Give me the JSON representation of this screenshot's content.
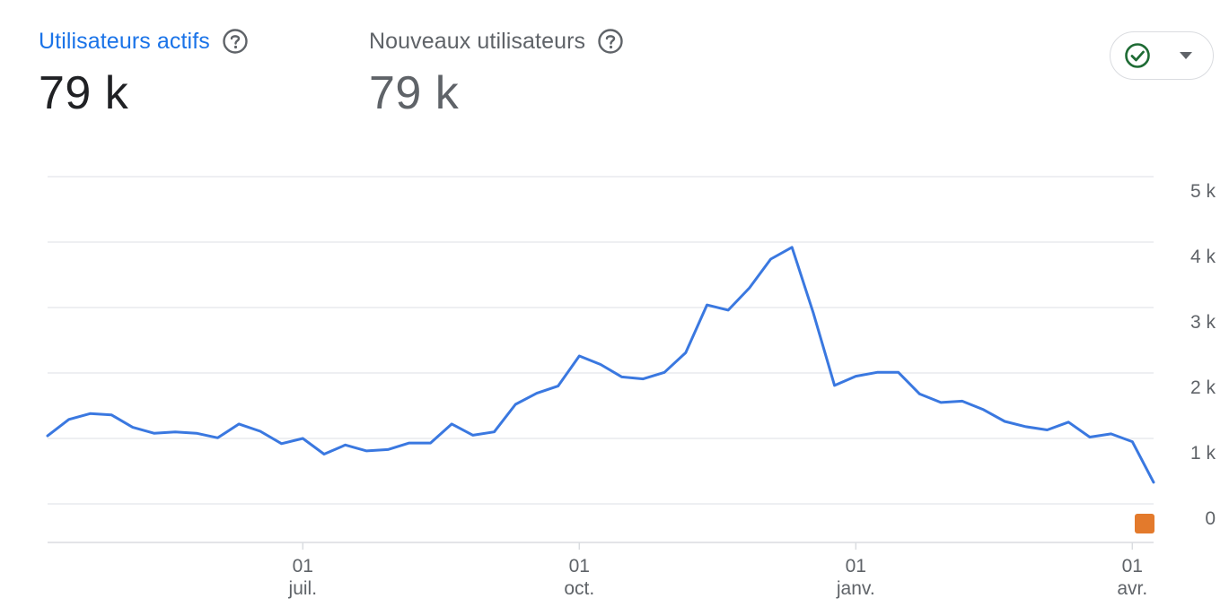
{
  "metrics": {
    "active_users": {
      "label": "Utilisateurs actifs",
      "value": "79 k"
    },
    "new_users": {
      "label": "Nouveaux utilisateurs",
      "value": "79 k"
    }
  },
  "icons": {
    "help": "help-circle-icon",
    "compare": "check-circle-icon",
    "dropdown": "caret-down-icon"
  },
  "colors": {
    "accent": "#1a73e8",
    "line": "#3a78e0",
    "check": "#1e6b34",
    "marker": "#e37a2c",
    "grid": "#e8eaed"
  },
  "chart_data": {
    "type": "line",
    "x_labels": [
      {
        "day": "01",
        "month": "juil."
      },
      {
        "day": "01",
        "month": "oct."
      },
      {
        "day": "01",
        "month": "janv."
      },
      {
        "day": "01",
        "month": "avr."
      }
    ],
    "y_ticks": [
      "0",
      "1 k",
      "2 k",
      "3 k",
      "4 k",
      "5 k"
    ],
    "ylim": [
      0,
      5000
    ],
    "x_label_index": [
      12,
      25,
      38,
      51
    ],
    "series": [
      {
        "values": [
          1040,
          1290,
          1380,
          1360,
          1170,
          1080,
          1100,
          1080,
          1010,
          1220,
          1110,
          920,
          1000,
          760,
          900,
          810,
          830,
          930,
          930,
          1220,
          1050,
          1100,
          1520,
          1690,
          1800,
          2260,
          2130,
          1940,
          1910,
          2010,
          2310,
          3040,
          2960,
          3300,
          3740,
          3920,
          2920,
          1810,
          1950,
          2010,
          2010,
          1680,
          1550,
          1570,
          1440,
          1260,
          1180,
          1130,
          1250,
          1020,
          1070,
          950,
          330
        ]
      }
    ]
  }
}
